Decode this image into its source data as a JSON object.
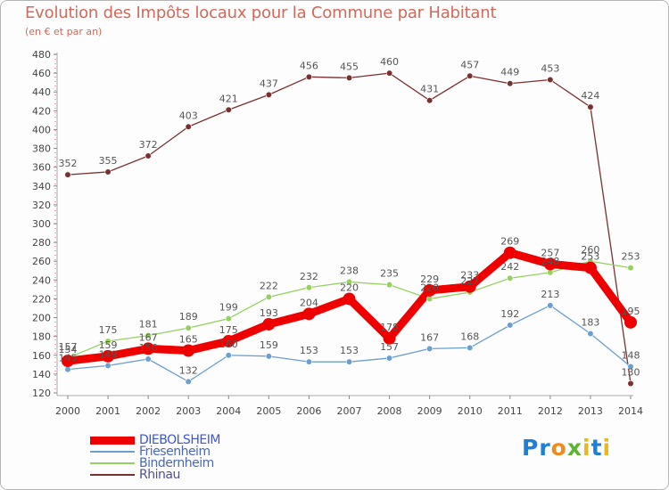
{
  "title": "Evolution des Impôts locaux pour la Commune par Habitant",
  "subtitle": "(en € et par an)",
  "brand": {
    "text": "Proxiti",
    "letters": [
      "P",
      "r",
      "o",
      "x",
      "i",
      "t",
      "i"
    ],
    "colors": [
      "#1e7fd6",
      "#1e7fd6",
      "#f08a1c",
      "#5cb531",
      "#e8b81f",
      "#1e7fd6",
      "#e8b81f"
    ]
  },
  "chart_data": {
    "type": "line",
    "title": "Evolution des Impôts locaux pour la Commune par Habitant",
    "xlabel": "",
    "ylabel": "",
    "x": [
      "2000",
      "2001",
      "2002",
      "2003",
      "2004",
      "2005",
      "2006",
      "2007",
      "2008",
      "2009",
      "2010",
      "2011",
      "2012",
      "2013",
      "2014"
    ],
    "ylim": [
      120,
      480
    ],
    "yticks": [
      120,
      140,
      160,
      180,
      200,
      220,
      240,
      260,
      280,
      300,
      320,
      340,
      360,
      380,
      400,
      420,
      440,
      460,
      480
    ],
    "grid": false,
    "legend_position": "bottom-left",
    "series": [
      {
        "name": "DIEBOLSHEIM",
        "color": "#ee0000",
        "width": 9,
        "marker_r": 7,
        "label_color": "#555555",
        "values": [
          154,
          159,
          167,
          165,
          175,
          193,
          204,
          220,
          178,
          229,
          233,
          269,
          257,
          253,
          195
        ],
        "labels": [
          "154",
          "159",
          "167",
          "165",
          "175",
          "193",
          "204",
          "220",
          "178",
          "229",
          "233",
          "269",
          "257",
          "253",
          "195"
        ]
      },
      {
        "name": "Friesenheim",
        "color": "#6c9fd0",
        "width": 1.3,
        "marker_r": 3.3,
        "label_color": "#555555",
        "values": [
          145,
          149,
          156,
          132,
          160,
          159,
          153,
          153,
          157,
          167,
          168,
          192,
          213,
          183,
          148
        ],
        "labels": [
          "145",
          "149",
          "156",
          "132",
          "160",
          "159",
          "153",
          "153",
          "157",
          "167",
          "168",
          "192",
          "213",
          "183",
          "148"
        ]
      },
      {
        "name": "Bindernheim",
        "color": "#95d160",
        "width": 1.3,
        "marker_r": 3.3,
        "label_color": "#555555",
        "values": [
          157,
          175,
          181,
          189,
          199,
          222,
          232,
          238,
          235,
          220,
          227,
          242,
          248,
          260,
          253
        ],
        "labels": [
          "157",
          "175",
          "181",
          "189",
          "199",
          "222",
          "232",
          "238",
          "235",
          "220",
          "227",
          "242",
          "248",
          "260",
          "253"
        ]
      },
      {
        "name": "Rhinau",
        "color": "#7b3030",
        "width": 1.3,
        "marker_r": 3.3,
        "label_color": "#555555",
        "values": [
          352,
          355,
          372,
          403,
          421,
          437,
          456,
          455,
          460,
          431,
          457,
          449,
          453,
          424,
          130
        ],
        "labels": [
          "352",
          "355",
          "372",
          "403",
          "421",
          "437",
          "456",
          "455",
          "460",
          "431",
          "457",
          "449",
          "453",
          "424",
          "130"
        ]
      }
    ]
  }
}
